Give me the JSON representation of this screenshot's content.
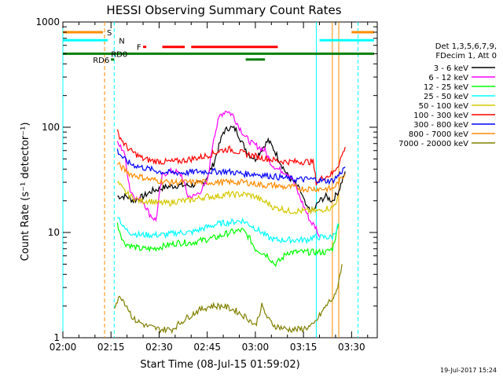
{
  "chart_data": {
    "type": "line",
    "title": "HESSI Observing Summary Count Rates",
    "xlabel": "Start Time (08-Jul-15 01:59:02)",
    "ylabel": "Count Rate (s⁻¹ detector⁻¹)",
    "x_axis": {
      "type": "time",
      "unit": "minutes_since_02:00",
      "range": [
        0,
        98
      ],
      "ticks": [
        {
          "v": 0,
          "label": "02:00"
        },
        {
          "v": 15,
          "label": "02:15"
        },
        {
          "v": 30,
          "label": "02:30"
        },
        {
          "v": 45,
          "label": "02:45"
        },
        {
          "v": 60,
          "label": "03:00"
        },
        {
          "v": 75,
          "label": "03:15"
        },
        {
          "v": 90,
          "label": "03:30"
        }
      ]
    },
    "y_axis": {
      "scale": "log",
      "range": [
        1,
        1000
      ],
      "ticks": [
        {
          "v": 1,
          "label": "1"
        },
        {
          "v": 10,
          "label": "10"
        },
        {
          "v": 100,
          "label": "100"
        },
        {
          "v": 1000,
          "label": "1000"
        }
      ]
    },
    "legend": {
      "position": "right",
      "header": [
        "Det 1,3,5,6,7,9,",
        "FDecim 1, Att 0"
      ]
    },
    "series": [
      {
        "name": "3 - 6 keV",
        "color": "#000000",
        "points": [
          [
            17,
            22
          ],
          [
            20,
            22
          ],
          [
            22,
            20
          ],
          [
            25,
            22
          ],
          [
            28,
            25
          ],
          [
            32,
            27
          ],
          [
            36,
            28
          ],
          [
            40,
            28
          ],
          [
            44,
            30
          ],
          [
            47,
            45
          ],
          [
            50,
            90
          ],
          [
            52,
            100
          ],
          [
            54,
            95
          ],
          [
            56,
            70
          ],
          [
            58,
            55
          ],
          [
            60,
            50
          ],
          [
            62,
            62
          ],
          [
            64,
            75
          ],
          [
            66,
            60
          ],
          [
            68,
            45
          ],
          [
            70,
            35
          ],
          [
            72,
            30
          ],
          [
            74,
            25
          ],
          [
            76,
            17
          ],
          [
            78,
            16
          ],
          [
            80,
            20
          ],
          [
            82,
            22
          ],
          [
            84,
            20
          ],
          [
            86,
            25
          ],
          [
            88,
            38
          ]
        ]
      },
      {
        "name": "6 - 12 keV",
        "color": "#ff00ff",
        "points": [
          [
            17,
            70
          ],
          [
            19,
            60
          ],
          [
            21,
            25
          ],
          [
            23,
            21
          ],
          [
            25,
            20
          ],
          [
            27,
            15
          ],
          [
            29,
            13
          ],
          [
            31,
            35
          ],
          [
            33,
            38
          ],
          [
            35,
            38
          ],
          [
            37,
            35
          ],
          [
            39,
            22
          ],
          [
            41,
            22
          ],
          [
            43,
            25
          ],
          [
            45,
            30
          ],
          [
            47,
            80
          ],
          [
            49,
            130
          ],
          [
            51,
            145
          ],
          [
            53,
            130
          ],
          [
            55,
            100
          ],
          [
            57,
            80
          ],
          [
            59,
            70
          ],
          [
            61,
            65
          ],
          [
            63,
            60
          ],
          [
            65,
            45
          ],
          [
            67,
            40
          ],
          [
            69,
            38
          ],
          [
            71,
            35
          ],
          [
            73,
            25
          ],
          [
            75,
            18
          ],
          [
            77,
            13
          ],
          [
            79,
            11
          ],
          [
            80,
            9
          ]
        ]
      },
      {
        "name": "12 - 25 keV",
        "color": "#00ff00",
        "points": [
          [
            17,
            12
          ],
          [
            19,
            8
          ],
          [
            21,
            7.5
          ],
          [
            24,
            7
          ],
          [
            28,
            7
          ],
          [
            32,
            7.5
          ],
          [
            36,
            8
          ],
          [
            40,
            8
          ],
          [
            44,
            8.5
          ],
          [
            48,
            9
          ],
          [
            52,
            10
          ],
          [
            56,
            10.5
          ],
          [
            58,
            9
          ],
          [
            60,
            7
          ],
          [
            62,
            6.5
          ],
          [
            64,
            6
          ],
          [
            66,
            5
          ],
          [
            68,
            5.5
          ],
          [
            70,
            6.5
          ],
          [
            72,
            6.5
          ],
          [
            74,
            6.5
          ],
          [
            76,
            6.5
          ],
          [
            78,
            6.5
          ],
          [
            80,
            6.5
          ],
          [
            82,
            6.5
          ],
          [
            84,
            7
          ],
          [
            86,
            12
          ]
        ]
      },
      {
        "name": "25 - 50 keV",
        "color": "#00ffff",
        "points": [
          [
            17,
            15
          ],
          [
            19,
            11
          ],
          [
            21,
            10
          ],
          [
            24,
            9.5
          ],
          [
            28,
            9.5
          ],
          [
            32,
            9.5
          ],
          [
            36,
            10
          ],
          [
            40,
            10
          ],
          [
            44,
            11
          ],
          [
            48,
            12
          ],
          [
            52,
            12.5
          ],
          [
            56,
            13
          ],
          [
            58,
            12
          ],
          [
            60,
            11
          ],
          [
            62,
            10
          ],
          [
            64,
            9
          ],
          [
            66,
            8.5
          ],
          [
            68,
            8.5
          ],
          [
            70,
            8.5
          ],
          [
            72,
            8.5
          ],
          [
            74,
            8.5
          ],
          [
            76,
            8.5
          ],
          [
            78,
            9
          ],
          [
            80,
            9
          ],
          [
            82,
            9
          ],
          [
            84,
            9
          ],
          [
            86,
            12
          ]
        ]
      },
      {
        "name": "50 - 100 keV",
        "color": "#d4c800",
        "points": [
          [
            17,
            30
          ],
          [
            19,
            25
          ],
          [
            21,
            22
          ],
          [
            24,
            20
          ],
          [
            27,
            20
          ],
          [
            30,
            19
          ],
          [
            33,
            19
          ],
          [
            36,
            20
          ],
          [
            39,
            20
          ],
          [
            42,
            21
          ],
          [
            45,
            22
          ],
          [
            48,
            22
          ],
          [
            51,
            23
          ],
          [
            54,
            23
          ],
          [
            57,
            23
          ],
          [
            60,
            22
          ],
          [
            62,
            20
          ],
          [
            64,
            19
          ],
          [
            66,
            17
          ],
          [
            68,
            17
          ],
          [
            70,
            16
          ],
          [
            72,
            16
          ],
          [
            74,
            16
          ],
          [
            76,
            16
          ],
          [
            78,
            16
          ],
          [
            80,
            16
          ],
          [
            82,
            17
          ],
          [
            84,
            17
          ],
          [
            86,
            22
          ]
        ]
      },
      {
        "name": "100 - 300 keV",
        "color": "#ff0000",
        "points": [
          [
            17,
            90
          ],
          [
            19,
            70
          ],
          [
            21,
            60
          ],
          [
            23,
            55
          ],
          [
            25,
            50
          ],
          [
            28,
            48
          ],
          [
            31,
            47
          ],
          [
            34,
            47
          ],
          [
            37,
            48
          ],
          [
            40,
            50
          ],
          [
            43,
            52
          ],
          [
            46,
            55
          ],
          [
            49,
            60
          ],
          [
            52,
            62
          ],
          [
            55,
            58
          ],
          [
            58,
            55
          ],
          [
            61,
            52
          ],
          [
            64,
            50
          ],
          [
            67,
            48
          ],
          [
            70,
            47
          ],
          [
            73,
            47
          ],
          [
            76,
            47
          ],
          [
            78,
            47
          ],
          [
            79,
            30
          ],
          [
            81,
            33
          ],
          [
            84,
            36
          ],
          [
            86,
            45
          ],
          [
            88,
            65
          ]
        ]
      },
      {
        "name": "300 - 800 keV",
        "color": "#0000ff",
        "points": [
          [
            17,
            60
          ],
          [
            19,
            50
          ],
          [
            21,
            45
          ],
          [
            24,
            42
          ],
          [
            27,
            40
          ],
          [
            30,
            38
          ],
          [
            33,
            37
          ],
          [
            36,
            37
          ],
          [
            39,
            37
          ],
          [
            42,
            38
          ],
          [
            45,
            38
          ],
          [
            48,
            38
          ],
          [
            51,
            38
          ],
          [
            54,
            37
          ],
          [
            57,
            36
          ],
          [
            60,
            36
          ],
          [
            63,
            35
          ],
          [
            66,
            34
          ],
          [
            69,
            33
          ],
          [
            72,
            32
          ],
          [
            75,
            32
          ],
          [
            78,
            32
          ],
          [
            81,
            31
          ],
          [
            84,
            31
          ],
          [
            86,
            35
          ],
          [
            88,
            42
          ]
        ]
      },
      {
        "name": "800 - 7000 keV",
        "color": "#ff8c00",
        "points": [
          [
            17,
            45
          ],
          [
            19,
            40
          ],
          [
            21,
            36
          ],
          [
            24,
            34
          ],
          [
            27,
            32
          ],
          [
            30,
            31
          ],
          [
            33,
            30
          ],
          [
            36,
            30
          ],
          [
            39,
            30
          ],
          [
            42,
            30
          ],
          [
            45,
            30
          ],
          [
            48,
            30
          ],
          [
            51,
            30
          ],
          [
            54,
            30
          ],
          [
            57,
            30
          ],
          [
            60,
            29
          ],
          [
            63,
            28
          ],
          [
            66,
            28
          ],
          [
            69,
            27
          ],
          [
            72,
            27
          ],
          [
            75,
            26
          ],
          [
            78,
            26
          ],
          [
            81,
            26
          ],
          [
            84,
            26
          ],
          [
            86,
            30
          ],
          [
            88,
            36
          ]
        ]
      },
      {
        "name": "7000 - 20000 keV",
        "color": "#808000",
        "points": [
          [
            16,
            2
          ],
          [
            18,
            2.5
          ],
          [
            20,
            2
          ],
          [
            22,
            1.5
          ],
          [
            26,
            1.3
          ],
          [
            30,
            1.2
          ],
          [
            34,
            1.2
          ],
          [
            38,
            1.5
          ],
          [
            42,
            1.8
          ],
          [
            46,
            2
          ],
          [
            50,
            2
          ],
          [
            54,
            1.8
          ],
          [
            58,
            1.5
          ],
          [
            60,
            1.3
          ],
          [
            62,
            2
          ],
          [
            64,
            1.5
          ],
          [
            66,
            1.3
          ],
          [
            70,
            1.2
          ],
          [
            74,
            1.2
          ],
          [
            78,
            1.3
          ],
          [
            81,
            1.8
          ],
          [
            83,
            2.2
          ],
          [
            85,
            2.5
          ],
          [
            86,
            3.5
          ],
          [
            87,
            5
          ]
        ]
      }
    ],
    "flag_bars": [
      {
        "label": "S",
        "color": "#ff8c00",
        "level": 800,
        "segments": [
          [
            0,
            12.5
          ],
          [
            90,
            97
          ]
        ]
      },
      {
        "label": "N",
        "color": "#00ffff",
        "level": 670,
        "segments": [
          [
            0,
            14
          ],
          [
            80,
            97
          ]
        ]
      },
      {
        "label": "F",
        "color": "#ff0000",
        "level": 580,
        "segments": [
          [
            25,
            26
          ],
          [
            31,
            38
          ],
          [
            40,
            67
          ]
        ]
      },
      {
        "label": "RD0",
        "color": "#008000",
        "level": 500,
        "segments": [
          [
            0,
            97
          ]
        ]
      },
      {
        "label": "RD6",
        "color": "#008000",
        "level": 440,
        "segments": [
          [
            15,
            16
          ],
          [
            57,
            63
          ]
        ]
      }
    ],
    "vlines": [
      {
        "x": 13,
        "color": "#ff8c00",
        "style": "dashed"
      },
      {
        "x": 16,
        "color": "#00ffff",
        "style": "dashed"
      },
      {
        "x": 0,
        "color": "#00ffff",
        "style": "solid"
      },
      {
        "x": 79,
        "color": "#00ffff",
        "style": "solid"
      },
      {
        "x": 84,
        "color": "#ff8c00",
        "style": "solid"
      },
      {
        "x": 86,
        "color": "#ff8c00",
        "style": "solid"
      },
      {
        "x": 92,
        "color": "#00ffff",
        "style": "dashed"
      }
    ],
    "footer": "19-Jul-2017 15:24"
  }
}
